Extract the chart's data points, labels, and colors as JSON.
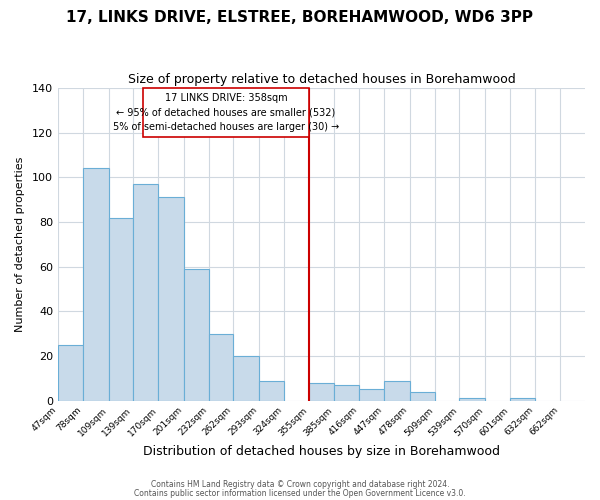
{
  "title": "17, LINKS DRIVE, ELSTREE, BOREHAMWOOD, WD6 3PP",
  "subtitle": "Size of property relative to detached houses in Borehamwood",
  "xlabel": "Distribution of detached houses by size in Borehamwood",
  "ylabel": "Number of detached properties",
  "bin_labels": [
    "47sqm",
    "78sqm",
    "109sqm",
    "139sqm",
    "170sqm",
    "201sqm",
    "232sqm",
    "262sqm",
    "293sqm",
    "324sqm",
    "355sqm",
    "385sqm",
    "416sqm",
    "447sqm",
    "478sqm",
    "509sqm",
    "539sqm",
    "570sqm",
    "601sqm",
    "632sqm",
    "662sqm"
  ],
  "bin_edges": [
    47,
    78,
    109,
    139,
    170,
    201,
    232,
    262,
    293,
    324,
    355,
    385,
    416,
    447,
    478,
    509,
    539,
    570,
    601,
    632,
    662,
    693
  ],
  "bar_heights": [
    25,
    104,
    82,
    97,
    91,
    59,
    30,
    20,
    9,
    0,
    8,
    7,
    5,
    9,
    4,
    0,
    1,
    0,
    1,
    0,
    0
  ],
  "bar_color": "#c8daea",
  "bar_edge_color": "#6aaed6",
  "reference_line_x": 355,
  "reference_line_color": "#cc0000",
  "annotation_line1": "17 LINKS DRIVE: 358sqm",
  "annotation_line2": "← 95% of detached houses are smaller (532)",
  "annotation_line3": "5% of semi-detached houses are larger (30) →",
  "annotation_box_color": "#cc0000",
  "ylim": [
    0,
    140
  ],
  "yticks": [
    0,
    20,
    40,
    60,
    80,
    100,
    120,
    140
  ],
  "footer1": "Contains HM Land Registry data © Crown copyright and database right 2024.",
  "footer2": "Contains public sector information licensed under the Open Government Licence v3.0.",
  "title_fontsize": 11,
  "subtitle_fontsize": 9,
  "xlabel_fontsize": 9,
  "ylabel_fontsize": 8,
  "background_color": "#ffffff",
  "grid_color": "#d0d8e0"
}
